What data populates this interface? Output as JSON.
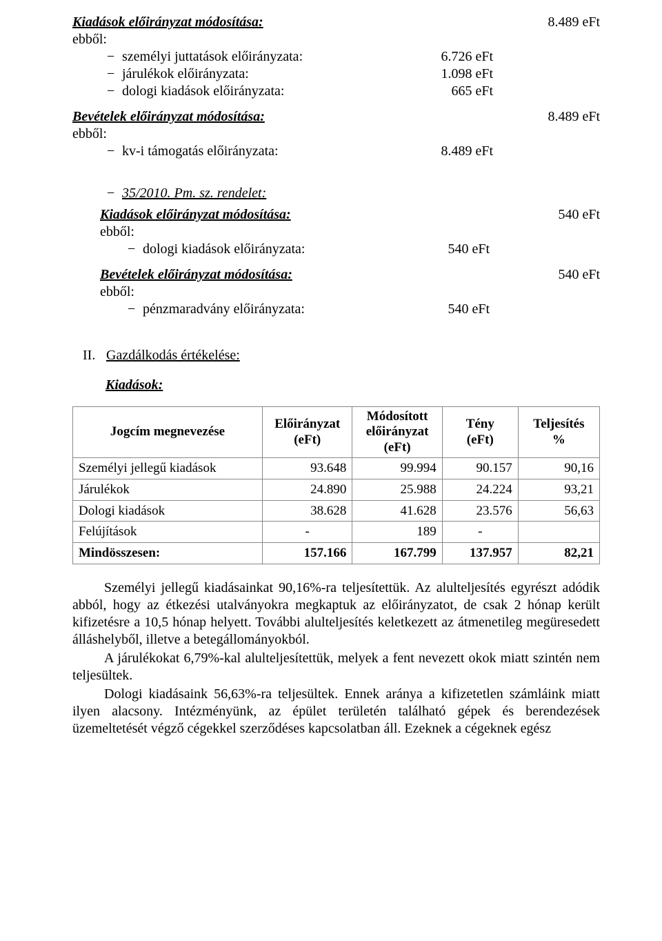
{
  "section1": {
    "title_label": "Kiadások előirányzat módosítása:",
    "title_value": "8.489 eFt",
    "ebbol": "ebből:",
    "items": [
      {
        "label": "személyi juttatások előirányzata:",
        "value": "6.726 eFt"
      },
      {
        "label": "járulékok előirányzata:",
        "value": "1.098 eFt"
      },
      {
        "label": "dologi kiadások előirányzata:",
        "value": "665 eFt"
      }
    ],
    "bevetelek_label": "Bevételek előirányzat módosítása:",
    "bevetelek_value": "8.489 eFt",
    "ebbol2": "ebből:",
    "sub2": {
      "label": "kv-i támogatás előirányzata:",
      "value": "8.489 eFt"
    }
  },
  "section2": {
    "heading": "35/2010. Pm. sz. rendelet:",
    "kiadasok_label": "Kiadások előirányzat módosítása:",
    "kiadasok_value": "540 eFt",
    "ebbol": "ebből:",
    "item1": {
      "label": "dologi kiadások előirányzata:",
      "value": "540 eFt"
    },
    "bevetelek_label": "Bevételek előirányzat módosítása:",
    "bevetelek_value": "540 eFt",
    "ebbol2": "ebből:",
    "item2": {
      "label": "pénzmaradvány előirányzata:",
      "value": "540 eFt"
    }
  },
  "section3": {
    "roman": "II.",
    "title": "Gazdálkodás értékelése:",
    "subtitle": "Kiadások:"
  },
  "table": {
    "headers": {
      "c1": "Jogcím megnevezése",
      "c2_l1": "Előirányzat",
      "c2_l2": "(eFt)",
      "c3_l1": "Módosított",
      "c3_l2": "előirányzat",
      "c3_l3": "(eFt)",
      "c4_l1": "Tény",
      "c4_l2": "(eFt)",
      "c5_l1": "Teljesítés",
      "c5_l2": "%"
    },
    "col_widths": [
      "270px",
      "128px",
      "128px",
      "108px",
      "116px"
    ],
    "rows": [
      {
        "name": "Személyi jellegű kiadások",
        "c2": "93.648",
        "c3": "99.994",
        "c4": "90.157",
        "c5": "90,16",
        "bold": false
      },
      {
        "name": "Járulékok",
        "c2": "24.890",
        "c3": "25.988",
        "c4": "24.224",
        "c5": "93,21",
        "bold": false
      },
      {
        "name": "Dologi kiadások",
        "c2": "38.628",
        "c3": "41.628",
        "c4": "23.576",
        "c5": "56,63",
        "bold": false
      },
      {
        "name": "Felújítások",
        "c2": "-",
        "c3": "189",
        "c4": "-",
        "c5": "",
        "bold": false
      },
      {
        "name": "Mindösszesen:",
        "c2": "157.166",
        "c3": "167.799",
        "c4": "137.957",
        "c5": "82,21",
        "bold": true
      }
    ]
  },
  "paragraphs": {
    "p1": "Személyi jellegű kiadásainkat 90,16%-ra teljesítettük. Az alulteljesítés egyrészt adódik abból, hogy az étkezési utalványokra megkaptuk az előirányzatot, de csak 2 hónap került kifizetésre a 10,5 hónap helyett. További alulteljesítés keletkezett az átmenetileg megüresedett álláshelyből, illetve a betegállományokból.",
    "p2": "A járulékokat 6,79%-kal alulteljesítettük, melyek a fent nevezett okok miatt szintén nem teljesültek.",
    "p3": "Dologi kiadásaink 56,63%-ra teljesültek. Ennek aránya a kifizetetlen számláink miatt ilyen alacsony. Intézményünk, az épület területén található gépek és berendezések üzemeltetését végző cégekkel szerződéses kapcsolatban áll. Ezeknek a cégeknek egész"
  }
}
